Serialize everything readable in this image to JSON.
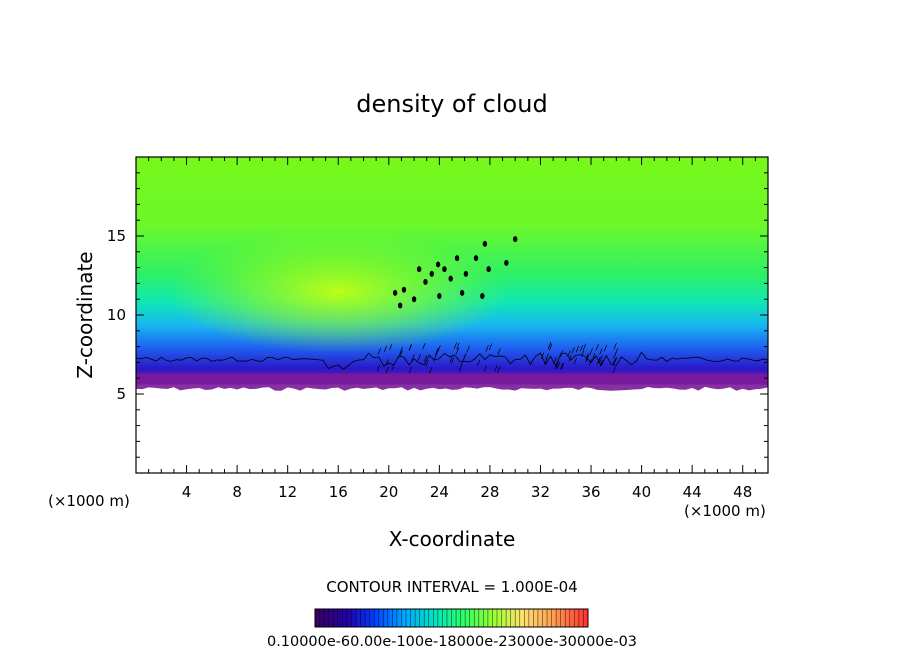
{
  "chart_data": {
    "type": "heatmap",
    "title": "density of cloud",
    "xlabel": "X-coordinate",
    "ylabel": "Z-coordinate",
    "x_unit": "(×1000 m)",
    "z_unit": "(×1000 m)",
    "xlim": [
      0,
      50
    ],
    "ylim": [
      0,
      20
    ],
    "x_ticks": [
      4,
      8,
      12,
      16,
      20,
      24,
      28,
      32,
      36,
      40,
      44,
      48
    ],
    "y_ticks": [
      5,
      10,
      15
    ],
    "grid": false,
    "contour_interval_text": "CONTOUR INTERVAL = 1.000E-04",
    "colorbar_label_text": "0.10000e-60.00e-100e-18000e-23000e-30000e-03",
    "colorbar_range": [
      0.0,
      0.0003
    ],
    "colormap": [
      "#3a0060",
      "#2200aa",
      "#0030ff",
      "#00a0ff",
      "#00e0c0",
      "#00ff60",
      "#60ff00",
      "#c0ff30",
      "#ffe060",
      "#ffa050",
      "#ff5040",
      "#ff2020"
    ],
    "field": {
      "cloud_base_z": 5.6,
      "cloud_base_line_z": 7.2,
      "cloud_top_z": 20,
      "core_center": [
        16,
        11.5
      ],
      "band_colors": [
        "#7a1a9a",
        "#2a2ad8",
        "#1c6cf0",
        "#1cb8f0",
        "#10e8b0",
        "#30f060",
        "#7cf818",
        "#a8f810"
      ]
    },
    "contour_islands": [
      [
        20.5,
        11.4
      ],
      [
        21.2,
        11.6
      ],
      [
        20.9,
        10.6
      ],
      [
        22.4,
        12.9
      ],
      [
        22.9,
        12.1
      ],
      [
        23.4,
        12.6
      ],
      [
        23.9,
        13.2
      ],
      [
        24.4,
        12.9
      ],
      [
        24.9,
        12.3
      ],
      [
        25.4,
        13.6
      ],
      [
        26.1,
        12.6
      ],
      [
        26.9,
        13.6
      ],
      [
        27.6,
        14.5
      ],
      [
        27.9,
        12.9
      ],
      [
        27.4,
        11.2
      ],
      [
        29.3,
        13.3
      ],
      [
        30.0,
        14.8
      ],
      [
        24.0,
        11.2
      ],
      [
        22.0,
        11.0
      ],
      [
        25.8,
        11.4
      ]
    ]
  }
}
